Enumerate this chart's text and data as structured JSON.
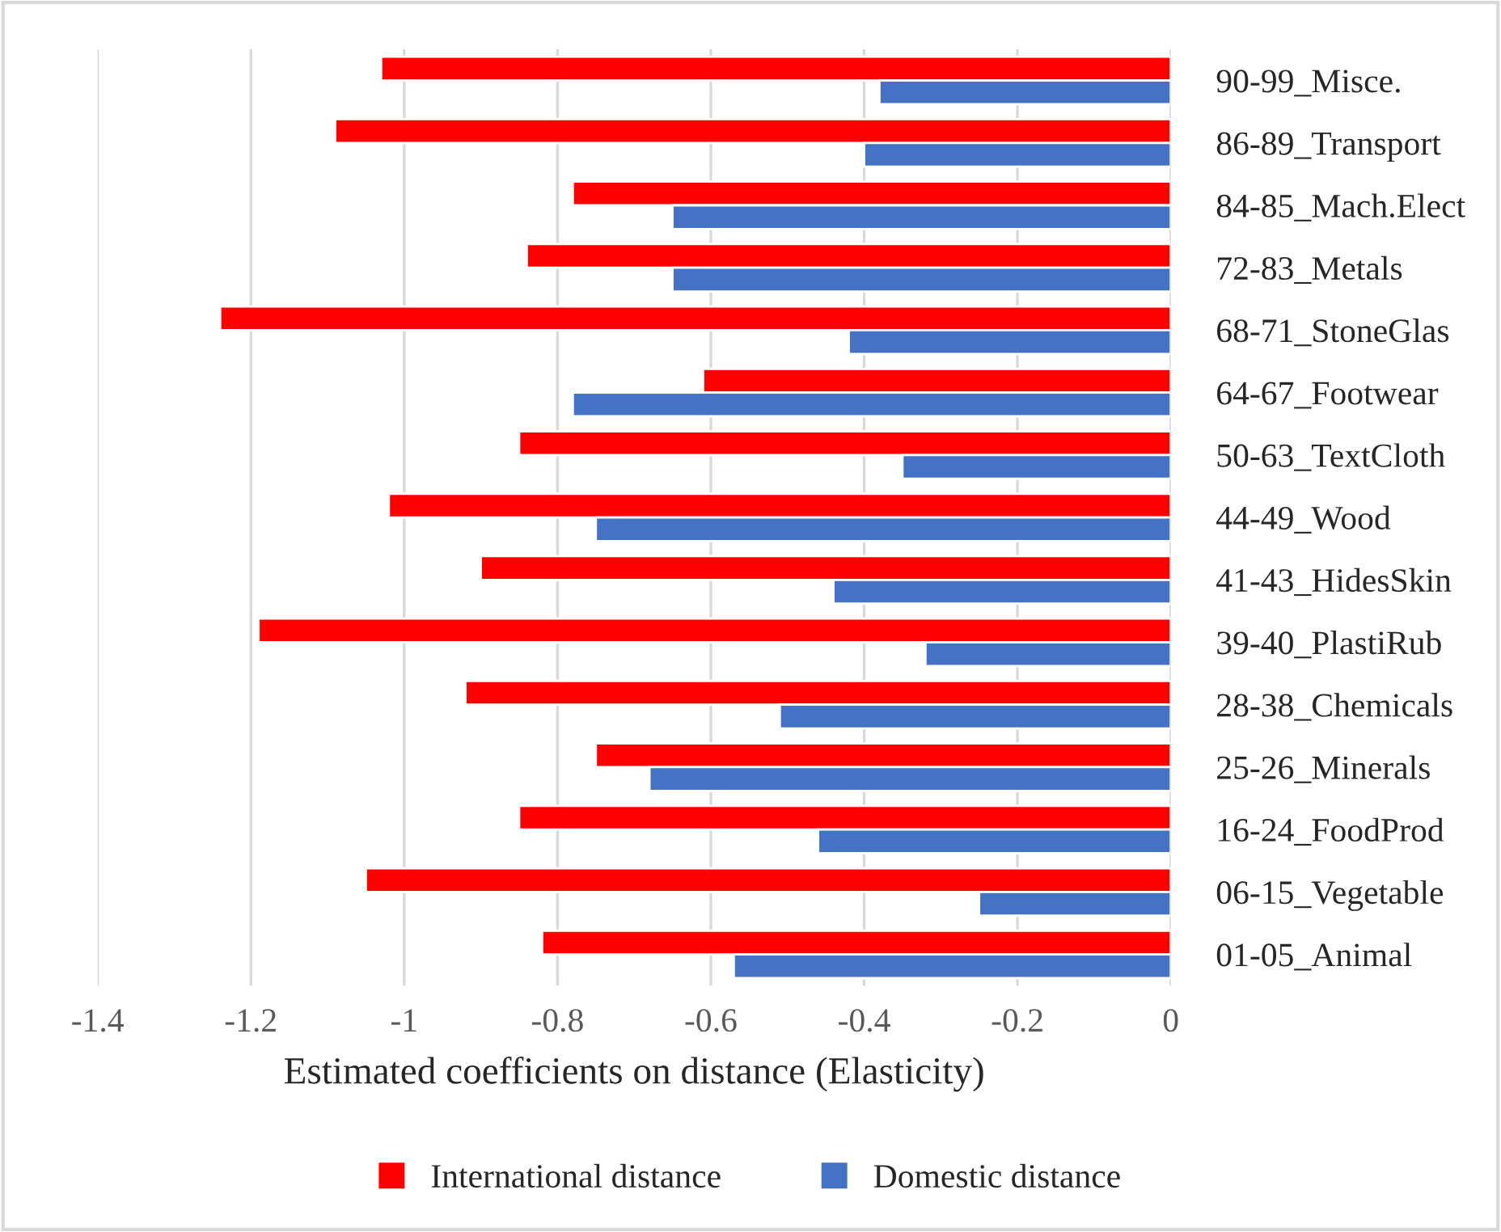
{
  "chart_data": {
    "type": "bar",
    "orientation": "horizontal",
    "xlabel": "Estimated coefficients on distance (Elasticity)",
    "categories": [
      "90-99_Misce.",
      "86-89_Transport",
      "84-85_Mach.Elect",
      "72-83_Metals",
      "68-71_StoneGlas",
      "64-67_Footwear",
      "50-63_TextCloth",
      "44-49_Wood",
      "41-43_HidesSkin",
      "39-40_PlastiRub",
      "28-38_Chemicals",
      "25-26_Minerals",
      "16-24_FoodProd",
      "06-15_Vegetable",
      "01-05_Animal"
    ],
    "series": [
      {
        "name": "International distance",
        "color": "#ff0000",
        "values": [
          -1.03,
          -1.09,
          -0.78,
          -0.84,
          -1.24,
          -0.61,
          -0.85,
          -1.02,
          -0.9,
          -1.19,
          -0.92,
          -0.75,
          -0.85,
          -1.05,
          -0.82
        ]
      },
      {
        "name": "Domestic distance",
        "color": "#4472c4",
        "values": [
          -0.38,
          -0.4,
          -0.65,
          -0.65,
          -0.42,
          -0.78,
          -0.35,
          -0.75,
          -0.44,
          -0.32,
          -0.51,
          -0.68,
          -0.46,
          -0.25,
          -0.57
        ]
      }
    ],
    "xlim": [
      -1.4,
      0
    ],
    "xticks": [
      -1.4,
      -1.2,
      -1,
      -0.8,
      -0.6,
      -0.4,
      -0.2,
      0
    ],
    "grid": "x",
    "legend": "bottom"
  }
}
